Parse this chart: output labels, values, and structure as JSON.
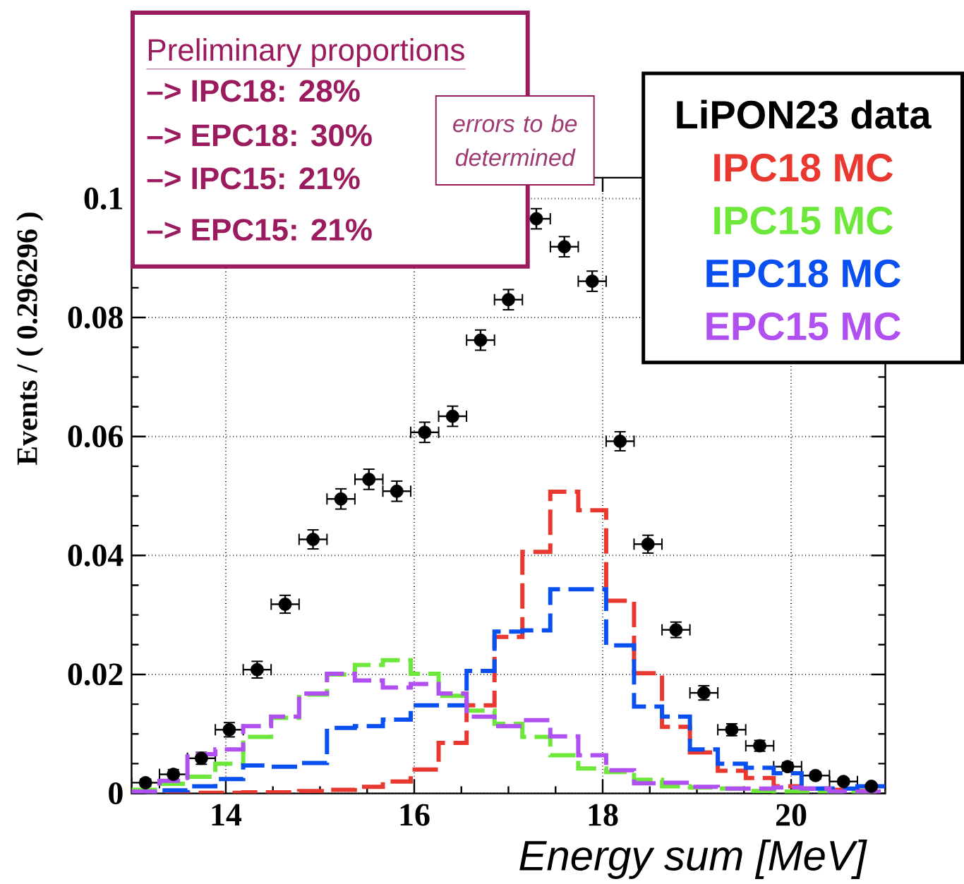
{
  "chart_data": {
    "type": "histogram",
    "xlabel": "Energy sum [MeV]",
    "ylabel": "Events / ( 0.296296 )",
    "xlim": [
      13,
      21
    ],
    "ylim": [
      0,
      0.1035
    ],
    "xticks": [
      14,
      16,
      18,
      20
    ],
    "yticks": [
      0,
      0.02,
      0.04,
      0.06,
      0.08,
      0.1
    ],
    "grid": true,
    "legend": "top right",
    "line_style": "dashed",
    "bins": [
      13,
      13.296,
      13.593,
      13.889,
      14.185,
      14.481,
      14.778,
      15.074,
      15.37,
      15.667,
      15.963,
      16.259,
      16.556,
      16.852,
      17.148,
      17.444,
      17.741,
      18.037,
      18.333,
      18.63,
      18.926,
      19.222,
      19.519,
      19.815,
      20.111,
      20.407,
      20.704,
      21
    ],
    "series": [
      {
        "name": "LiPON23 data",
        "type": "scatter",
        "color": "#000000",
        "x": [
          13.148,
          13.444,
          13.741,
          14.037,
          14.333,
          14.63,
          14.926,
          15.222,
          15.519,
          15.815,
          16.111,
          16.407,
          16.704,
          17.0,
          17.296,
          17.593,
          17.889,
          18.185,
          18.481,
          18.778,
          19.074,
          19.37,
          19.667,
          19.963,
          20.259,
          20.556,
          20.852
        ],
        "values": [
          0.0018,
          0.0032,
          0.0059,
          0.0107,
          0.0208,
          0.0318,
          0.0427,
          0.0495,
          0.0528,
          0.0508,
          0.0607,
          0.0634,
          0.0762,
          0.083,
          0.0966,
          0.0919,
          0.0861,
          0.0592,
          0.0419,
          0.0275,
          0.0169,
          0.0107,
          0.008,
          0.0045,
          0.003,
          0.002,
          0.0012
        ],
        "errors": [
          0.0006,
          0.0008,
          0.001,
          0.0012,
          0.0014,
          0.0015,
          0.0016,
          0.0017,
          0.0017,
          0.0017,
          0.0017,
          0.0017,
          0.0017,
          0.0017,
          0.0017,
          0.0017,
          0.0017,
          0.0016,
          0.0015,
          0.0013,
          0.0012,
          0.001,
          0.0009,
          0.0007,
          0.0006,
          0.0005,
          0.0004
        ],
        "xerrors": [
          0.148,
          0.148,
          0.148,
          0.148,
          0.148,
          0.148,
          0.148,
          0.148,
          0.148,
          0.148,
          0.148,
          0.148,
          0.148,
          0.148,
          0.148,
          0.148,
          0.148,
          0.148,
          0.148,
          0.148,
          0.148,
          0.148,
          0.148,
          0.148,
          0.148,
          0.148,
          0.148
        ]
      },
      {
        "name": "IPC18 MC",
        "color": "#e8382f",
        "values": [
          0.0,
          0.0001,
          0.0001,
          0.0001,
          0.0002,
          0.0002,
          0.0004,
          0.0006,
          0.0011,
          0.002,
          0.004,
          0.0085,
          0.0148,
          0.0263,
          0.0406,
          0.0507,
          0.0476,
          0.0324,
          0.0202,
          0.0112,
          0.0069,
          0.0038,
          0.0026,
          0.0012,
          0.0008,
          0.0006,
          0.0004
        ]
      },
      {
        "name": "IPC15 MC",
        "color": "#6de83a",
        "values": [
          0.0006,
          0.0016,
          0.0028,
          0.005,
          0.0095,
          0.0127,
          0.0166,
          0.02,
          0.0216,
          0.0224,
          0.0201,
          0.0164,
          0.0139,
          0.0117,
          0.0095,
          0.0064,
          0.0042,
          0.0036,
          0.0023,
          0.0012,
          0.001,
          0.0008,
          0.0004,
          0.0003,
          0.0002,
          0.0002,
          0.0001
        ]
      },
      {
        "name": "EPC18 MC",
        "color": "#0a4ff0",
        "values": [
          0.0,
          0.0005,
          0.0012,
          0.0024,
          0.0047,
          0.0045,
          0.0051,
          0.011,
          0.0113,
          0.0124,
          0.0148,
          0.0148,
          0.0206,
          0.0272,
          0.0274,
          0.0343,
          0.0343,
          0.0249,
          0.0146,
          0.0129,
          0.0074,
          0.005,
          0.0043,
          0.0034,
          0.0008,
          0.0008,
          0.0012
        ]
      },
      {
        "name": "EPC15 MC",
        "color": "#b050f0",
        "values": [
          0.0003,
          0.0021,
          0.0066,
          0.0074,
          0.0113,
          0.0129,
          0.0168,
          0.0201,
          0.019,
          0.0178,
          0.0184,
          0.0168,
          0.0129,
          0.0113,
          0.0123,
          0.0096,
          0.0064,
          0.0039,
          0.0017,
          0.0018,
          0.0011,
          0.0008,
          0.0008,
          0.001,
          0.0008,
          0.0003,
          0.0003
        ]
      }
    ],
    "annotations": [
      "Preliminary proportions",
      "–> IPC18: 28%",
      "–> EPC18: 30%",
      "–> IPC15: 21%",
      "–> EPC15: 21%",
      "errors to be determined"
    ]
  }
}
